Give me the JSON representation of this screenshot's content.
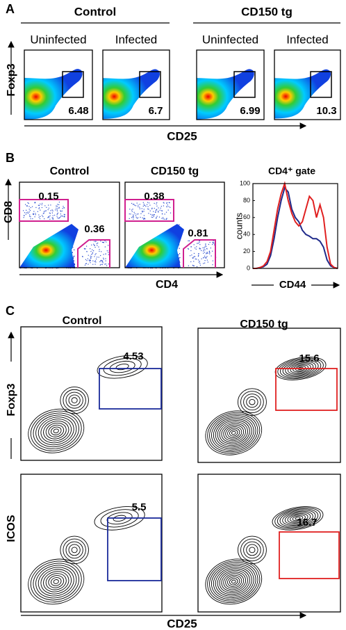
{
  "panel_a": {
    "label": "A",
    "groups": [
      {
        "title": "Control",
        "plots": [
          {
            "title": "Uninfected",
            "value": 6.48
          },
          {
            "title": "Infected",
            "value": 6.7
          }
        ]
      },
      {
        "title": "CD150 tg",
        "plots": [
          {
            "title": "Uninfected",
            "value": 6.99
          },
          {
            "title": "Infected",
            "value": 10.3
          }
        ]
      }
    ],
    "y_axis": "Foxp3",
    "x_axis": "CD25"
  },
  "panel_b": {
    "label": "B",
    "plots": [
      {
        "title": "Control",
        "upper_gate": 0.15,
        "lower_gate": 0.36
      },
      {
        "title": "CD150 tg",
        "upper_gate": 0.38,
        "lower_gate": 0.81
      }
    ],
    "y_axis": "CD8",
    "x_axis": "CD4",
    "histogram": {
      "type": "line",
      "title": "CD4⁺ gate",
      "ylabel": "counts",
      "xlabel": "CD44",
      "ylim": [
        0,
        100
      ],
      "yticks": [
        0,
        20,
        40,
        60,
        80,
        100
      ],
      "series": [
        {
          "color": "#1f2a8a",
          "values": [
            0,
            0,
            1,
            2,
            5,
            15,
            35,
            60,
            80,
            95,
            90,
            70,
            60,
            55,
            45,
            40,
            38,
            35,
            35,
            32,
            25,
            10,
            3,
            1,
            0
          ]
        },
        {
          "color": "#e02020",
          "values": [
            0,
            0,
            1,
            3,
            8,
            20,
            45,
            70,
            88,
            100,
            80,
            65,
            55,
            50,
            55,
            70,
            85,
            80,
            60,
            75,
            60,
            25,
            5,
            1,
            0
          ]
        }
      ]
    }
  },
  "panel_c": {
    "label": "C",
    "columns": [
      "Control",
      "CD150 tg"
    ],
    "rows": [
      {
        "y_axis": "Foxp3",
        "values": [
          4.53,
          15.6
        ]
      },
      {
        "y_axis": "ICOS",
        "values": [
          5.5,
          16.7
        ]
      }
    ],
    "x_axis": "CD25"
  }
}
